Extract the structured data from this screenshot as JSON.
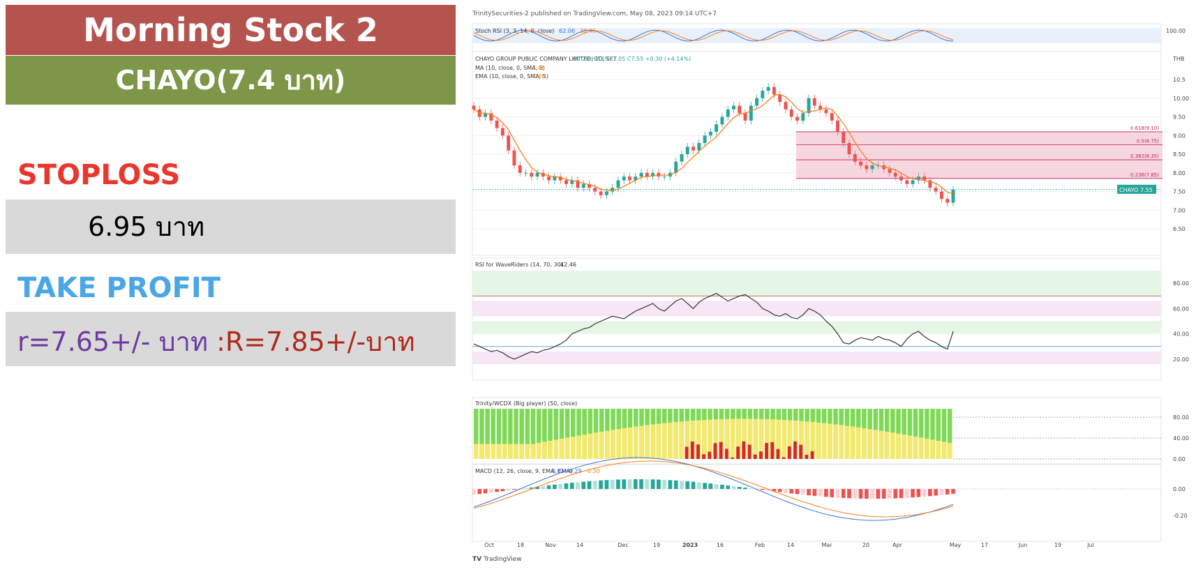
{
  "header": {
    "title": "Morning Stock 2",
    "symbol": "CHAYO(7.4 บาท)"
  },
  "stoploss": {
    "label": "STOPLOSS",
    "value": "6.95 บาท"
  },
  "take_profit": {
    "label": "TAKE PROFIT",
    "r_text": "r=7.65+/- บาท ",
    "R_text": ":R=7.85+/-บาท"
  },
  "colors": {
    "title_bg": "#b5534f",
    "symbol_bg": "#7e9647",
    "stoploss_label": "#e8372c",
    "take_profit_label": "#4aa6e4",
    "r_text": "#6e3aa0",
    "R_text": "#b02a1c",
    "up_candle": "#26a69a",
    "down_candle": "#ef5350",
    "ma_line": "#f57f17",
    "fib_zone": "#f4c6d2"
  },
  "chart_data": {
    "type": "line",
    "attribution": "TrinitySecurities-2 published on TradingView.com, May 08, 2023 09:14 UTC+7",
    "branding": "TradingView",
    "currency": "THB",
    "price_title": "CHAYO GROUP PUBLIC COMPANY LIMITED, 1D, SET",
    "ohlc_text": "O7.20  H7.65  L7.05  C7.55  +0.30 (+4.14%)",
    "ma_label": "MA (10, close, 0, SMA, 5)",
    "ma_value": "7.46",
    "ema_label": "EMA (10, close, 0, SMA, 5)",
    "ema_value": "7.46",
    "last_price_tag": {
      "symbol": "CHAYO",
      "value": "7.55"
    },
    "y_ticks": [
      "10.5",
      "10.00",
      "9.50",
      "9.00",
      "8.50",
      "8.00",
      "7.50",
      "7.00",
      "6.50"
    ],
    "ylim": [
      6.5,
      10.8
    ],
    "x_ticks": [
      "Oct",
      "18",
      "Nov",
      "14",
      "Dec",
      "19",
      "2023",
      "16",
      "Feb",
      "14",
      "Mar",
      "20",
      "Apr",
      "May",
      "17",
      "Jun",
      "19",
      "Jul"
    ],
    "close_series": [
      9.7,
      9.5,
      9.6,
      9.4,
      9.2,
      9.0,
      8.6,
      8.2,
      8.0,
      8.0,
      7.9,
      8.0,
      7.9,
      7.8,
      7.9,
      7.8,
      7.7,
      7.8,
      7.6,
      7.7,
      7.6,
      7.5,
      7.4,
      7.5,
      7.6,
      7.8,
      7.9,
      7.8,
      7.9,
      8.0,
      7.9,
      8.0,
      7.9,
      7.9,
      8.0,
      8.3,
      8.5,
      8.7,
      8.6,
      8.8,
      9.0,
      9.1,
      9.3,
      9.5,
      9.7,
      9.8,
      9.6,
      9.4,
      9.8,
      10.0,
      10.2,
      10.3,
      10.1,
      9.9,
      9.7,
      9.5,
      9.4,
      9.6,
      10.0,
      9.8,
      9.7,
      9.6,
      9.4,
      9.1,
      8.8,
      8.5,
      8.3,
      8.2,
      8.1,
      8.2,
      8.2,
      8.1,
      8.0,
      7.9,
      7.8,
      7.7,
      7.8,
      7.9,
      7.8,
      7.6,
      7.5,
      7.3,
      7.2,
      7.55
    ],
    "fibonacci": [
      {
        "label": "0.618(9.10)",
        "value": 9.1
      },
      {
        "label": "0.5(8.75)",
        "value": 8.75
      },
      {
        "label": "0.382(8.35)",
        "value": 8.35
      },
      {
        "label": "0.236(7.85)",
        "value": 7.85
      }
    ],
    "stoch_rsi": {
      "label": "Stoch RSI (3, 3, 14, 9, close)",
      "k": "62.06",
      "d": "38.46",
      "y_ticks": [
        "100.00"
      ]
    },
    "rsi": {
      "label": "RSI for WaveRiders (14, 70, 30)",
      "value": "42.46",
      "y_ticks": [
        "80.00",
        "60.00",
        "40.00",
        "20.00"
      ],
      "ylim": [
        10,
        90
      ],
      "series": [
        32,
        30,
        28,
        26,
        27,
        25,
        22,
        20,
        22,
        24,
        26,
        25,
        27,
        28,
        30,
        32,
        35,
        40,
        42,
        44,
        45,
        48,
        50,
        52,
        54,
        53,
        52,
        55,
        58,
        60,
        62,
        64,
        60,
        58,
        62,
        66,
        68,
        64,
        60,
        65,
        68,
        70,
        72,
        69,
        66,
        68,
        70,
        71,
        68,
        65,
        60,
        58,
        55,
        54,
        56,
        53,
        52,
        55,
        60,
        58,
        55,
        50,
        46,
        40,
        33,
        32,
        35,
        37,
        36,
        35,
        38,
        36,
        35,
        33,
        30,
        36,
        40,
        42,
        38,
        35,
        33,
        30,
        28,
        42
      ]
    },
    "wcdx": {
      "label": "Trinity/WCDX (Big player) (50, close)",
      "y_ticks": [
        "80.00",
        "40.00",
        "0.00"
      ]
    },
    "macd": {
      "label": "MACD (12, 26, close, 9, EMA, EMA)",
      "values": [
        "0.01",
        "-0.29",
        "-0.30"
      ],
      "y_ticks": [
        "0.00",
        "-0.20"
      ]
    }
  }
}
